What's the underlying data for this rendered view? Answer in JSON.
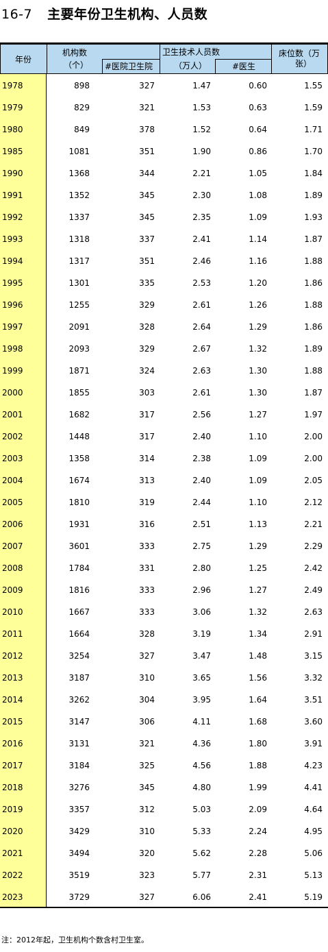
{
  "title": {
    "number": "16-7",
    "text": "主要年份卫生机构、人员数"
  },
  "headers": {
    "year": "年份",
    "institutions": "机构数",
    "institutions_unit": "（个）",
    "hospitals": "#医院卫生院",
    "staff": "卫生技术人员数",
    "staff_unit": "（万人）",
    "doctors": "#医生",
    "beds": "床位数（万",
    "beds_unit": "张）"
  },
  "rows": [
    [
      "1978",
      "898",
      "327",
      "1.47",
      "0.60",
      "1.55"
    ],
    [
      "1979",
      "829",
      "321",
      "1.53",
      "0.63",
      "1.59"
    ],
    [
      "1980",
      "849",
      "378",
      "1.52",
      "0.64",
      "1.71"
    ],
    [
      "1985",
      "1081",
      "351",
      "1.90",
      "0.86",
      "1.70"
    ],
    [
      "1990",
      "1368",
      "344",
      "2.21",
      "1.05",
      "1.84"
    ],
    [
      "1991",
      "1352",
      "345",
      "2.30",
      "1.08",
      "1.89"
    ],
    [
      "1992",
      "1337",
      "345",
      "2.35",
      "1.09",
      "1.93"
    ],
    [
      "1993",
      "1318",
      "337",
      "2.41",
      "1.14",
      "1.87"
    ],
    [
      "1994",
      "1317",
      "351",
      "2.46",
      "1.16",
      "1.88"
    ],
    [
      "1995",
      "1301",
      "335",
      "2.53",
      "1.20",
      "1.86"
    ],
    [
      "1996",
      "1255",
      "329",
      "2.61",
      "1.26",
      "1.88"
    ],
    [
      "1997",
      "2091",
      "328",
      "2.64",
      "1.29",
      "1.86"
    ],
    [
      "1998",
      "2093",
      "329",
      "2.67",
      "1.32",
      "1.89"
    ],
    [
      "1999",
      "1871",
      "324",
      "2.63",
      "1.30",
      "1.88"
    ],
    [
      "2000",
      "1855",
      "303",
      "2.61",
      "1.30",
      "1.87"
    ],
    [
      "2001",
      "1682",
      "317",
      "2.56",
      "1.27",
      "1.97"
    ],
    [
      "2002",
      "1448",
      "317",
      "2.40",
      "1.10",
      "2.00"
    ],
    [
      "2003",
      "1358",
      "314",
      "2.38",
      "1.09",
      "2.00"
    ],
    [
      "2004",
      "1674",
      "313",
      "2.40",
      "1.09",
      "2.05"
    ],
    [
      "2005",
      "1810",
      "319",
      "2.44",
      "1.10",
      "2.12"
    ],
    [
      "2006",
      "1931",
      "316",
      "2.51",
      "1.13",
      "2.21"
    ],
    [
      "2007",
      "3601",
      "333",
      "2.75",
      "1.29",
      "2.29"
    ],
    [
      "2008",
      "1784",
      "331",
      "2.80",
      "1.25",
      "2.42"
    ],
    [
      "2009",
      "1816",
      "333",
      "2.96",
      "1.27",
      "2.49"
    ],
    [
      "2010",
      "1667",
      "333",
      "3.06",
      "1.32",
      "2.63"
    ],
    [
      "2011",
      "1664",
      "328",
      "3.19",
      "1.34",
      "2.91"
    ],
    [
      "2012",
      "3254",
      "327",
      "3.47",
      "1.48",
      "3.15"
    ],
    [
      "2013",
      "3187",
      "310",
      "3.65",
      "1.56",
      "3.32"
    ],
    [
      "2014",
      "3262",
      "304",
      "3.95",
      "1.64",
      "3.51"
    ],
    [
      "2015",
      "3147",
      "306",
      "4.11",
      "1.68",
      "3.60"
    ],
    [
      "2016",
      "3131",
      "321",
      "4.36",
      "1.80",
      "3.91"
    ],
    [
      "2017",
      "3184",
      "325",
      "4.56",
      "1.88",
      "4.23"
    ],
    [
      "2018",
      "3276",
      "345",
      "4.80",
      "1.99",
      "4.41"
    ],
    [
      "2019",
      "3357",
      "312",
      "5.03",
      "2.09",
      "4.64"
    ],
    [
      "2020",
      "3429",
      "310",
      "5.33",
      "2.24",
      "4.95"
    ],
    [
      "2021",
      "3494",
      "320",
      "5.62",
      "2.28",
      "5.06"
    ],
    [
      "2022",
      "3519",
      "323",
      "5.77",
      "2.31",
      "5.13"
    ],
    [
      "2023",
      "3729",
      "327",
      "6.06",
      "2.41",
      "5.19"
    ]
  ],
  "note": "注：2012年起，卫生机构个数含村卫生室。",
  "colors": {
    "header_bg": "#b9d9f1",
    "year_bg": "#ffff99"
  }
}
